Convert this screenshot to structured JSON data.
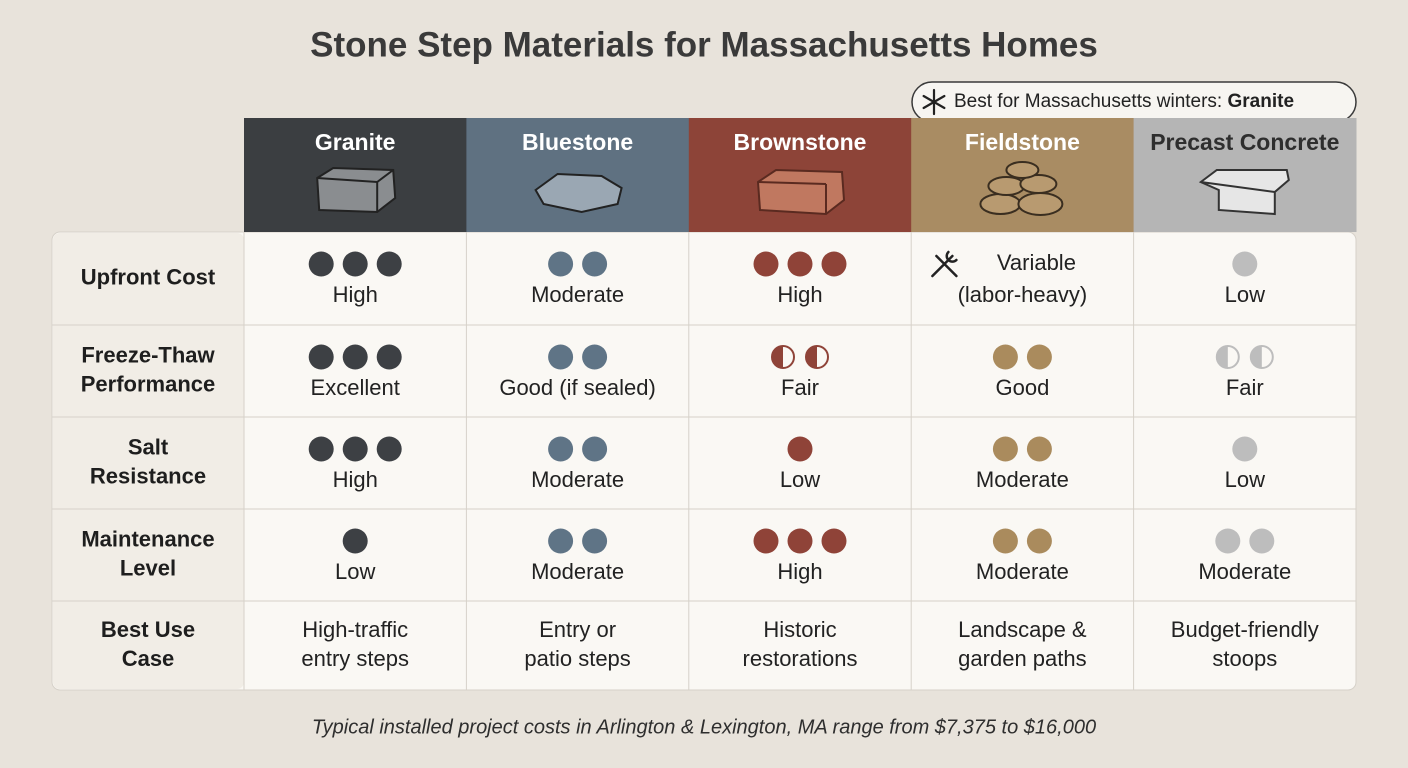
{
  "title": "Stone Step Materials for Massachusetts Homes",
  "badge": {
    "text": "Best for Massachusetts winters:",
    "highlight": "Granite"
  },
  "columns": [
    {
      "name": "Granite",
      "header_color": "#3b3e41",
      "dot_color": "#3d4044",
      "text_color": "#ffffff"
    },
    {
      "name": "Bluestone",
      "header_color": "#5f7181",
      "dot_color": "#5f7486",
      "text_color": "#ffffff"
    },
    {
      "name": "Brownstone",
      "header_color": "#8d4438",
      "dot_color": "#8f4338",
      "text_color": "#ffffff"
    },
    {
      "name": "Fieldstone",
      "header_color": "#a98c63",
      "dot_color": "#aa8b5d",
      "text_color": "#ffffff"
    },
    {
      "name": "Precast Concrete",
      "header_color": "#b5b5b5",
      "dot_color": "#bdbdbd",
      "text_color": "#2e2e2e"
    }
  ],
  "rows": [
    {
      "label": [
        "Upfront Cost"
      ],
      "cells": [
        {
          "dots": 3,
          "text": [
            "High"
          ]
        },
        {
          "dots": 2,
          "text": [
            "Moderate"
          ]
        },
        {
          "dots": 3,
          "text": [
            "High"
          ]
        },
        {
          "icon": "tools",
          "text": [
            "Variable",
            "(labor-heavy)"
          ]
        },
        {
          "dots": 1,
          "text": [
            "Low"
          ]
        }
      ]
    },
    {
      "label": [
        "Freeze-Thaw",
        "Performance"
      ],
      "cells": [
        {
          "dots": 3,
          "text": [
            "Excellent"
          ]
        },
        {
          "dots": 2,
          "text": [
            "Good (if sealed)"
          ]
        },
        {
          "dots": 2,
          "half": true,
          "text": [
            "Fair"
          ]
        },
        {
          "dots": 2,
          "text": [
            "Good"
          ]
        },
        {
          "dots": 2,
          "half": true,
          "text": [
            "Fair"
          ]
        }
      ]
    },
    {
      "label": [
        "Salt",
        "Resistance"
      ],
      "cells": [
        {
          "dots": 3,
          "text": [
            "High"
          ]
        },
        {
          "dots": 2,
          "text": [
            "Moderate"
          ]
        },
        {
          "dots": 1,
          "text": [
            "Low"
          ]
        },
        {
          "dots": 2,
          "text": [
            "Moderate"
          ]
        },
        {
          "dots": 1,
          "text": [
            "Low"
          ]
        }
      ]
    },
    {
      "label": [
        "Maintenance",
        "Level"
      ],
      "cells": [
        {
          "dots": 1,
          "text": [
            "Low"
          ]
        },
        {
          "dots": 2,
          "text": [
            "Moderate"
          ]
        },
        {
          "dots": 3,
          "text": [
            "High"
          ]
        },
        {
          "dots": 2,
          "text": [
            "Moderate"
          ]
        },
        {
          "dots": 2,
          "text": [
            "Moderate"
          ]
        }
      ]
    },
    {
      "label": [
        "Best Use",
        "Case"
      ],
      "cells": [
        {
          "text": [
            "High-traffic",
            "entry steps"
          ]
        },
        {
          "text": [
            "Entry or",
            "patio steps"
          ]
        },
        {
          "text": [
            "Historic",
            "restorations"
          ]
        },
        {
          "text": [
            "Landscape &",
            "garden paths"
          ]
        },
        {
          "text": [
            "Budget-friendly",
            "stoops"
          ]
        }
      ]
    }
  ],
  "footer": "Typical installed project costs in Arlington & Lexington, MA range from $7,375 to $16,000"
}
